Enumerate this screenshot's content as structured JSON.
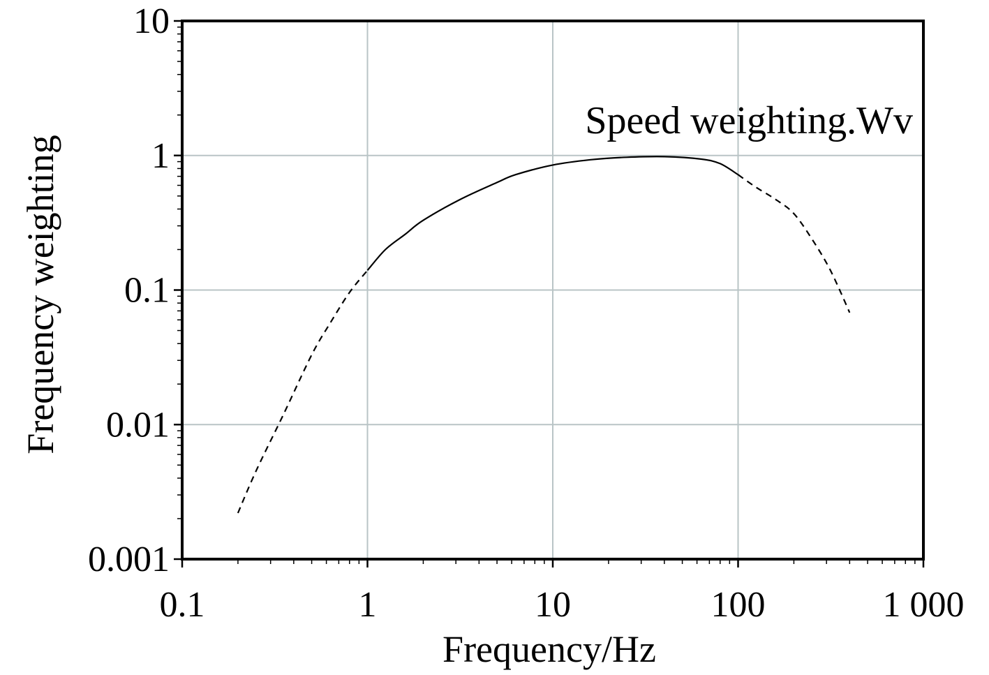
{
  "chart_data": {
    "type": "line",
    "title": "",
    "xlabel": "Frequency/Hz",
    "ylabel": "Frequency weighting",
    "xscale": "log",
    "yscale": "log",
    "xlim": [
      0.1,
      1000
    ],
    "ylim": [
      0.001,
      10
    ],
    "grid": true,
    "x_ticks": [
      {
        "value": 0.1,
        "label": "0.1"
      },
      {
        "value": 1,
        "label": "1"
      },
      {
        "value": 10,
        "label": "10"
      },
      {
        "value": 100,
        "label": "100"
      },
      {
        "value": 1000,
        "label": "1 000"
      }
    ],
    "y_ticks": [
      {
        "value": 0.001,
        "label": "0.001"
      },
      {
        "value": 0.01,
        "label": "0.01"
      },
      {
        "value": 0.1,
        "label": "0.1"
      },
      {
        "value": 1,
        "label": "1"
      },
      {
        "value": 10,
        "label": "10"
      }
    ],
    "annotation": "Speed weighting.Wv",
    "series": [
      {
        "name": "Speed weighting.Wv",
        "segments": [
          {
            "style": "dashed",
            "x": [
              0.2,
              0.25,
              0.35,
              0.5,
              0.63,
              0.8,
              1.0
            ],
            "y": [
              0.0022,
              0.0045,
              0.0117,
              0.033,
              0.057,
              0.096,
              0.14
            ]
          },
          {
            "style": "solid",
            "x": [
              1.0,
              1.25,
              1.6,
              2.0,
              3.15,
              5.0,
              6.3,
              10,
              16,
              25,
              40,
              63,
              80,
              100
            ],
            "y": [
              0.14,
              0.2,
              0.26,
              0.33,
              0.47,
              0.63,
              0.72,
              0.85,
              0.93,
              0.97,
              0.98,
              0.94,
              0.87,
              0.72
            ]
          },
          {
            "style": "dashed",
            "x": [
              100,
              125,
              160,
              200,
              250,
              315,
              400
            ],
            "y": [
              0.72,
              0.58,
              0.47,
              0.37,
              0.24,
              0.14,
              0.068
            ]
          }
        ]
      }
    ]
  }
}
